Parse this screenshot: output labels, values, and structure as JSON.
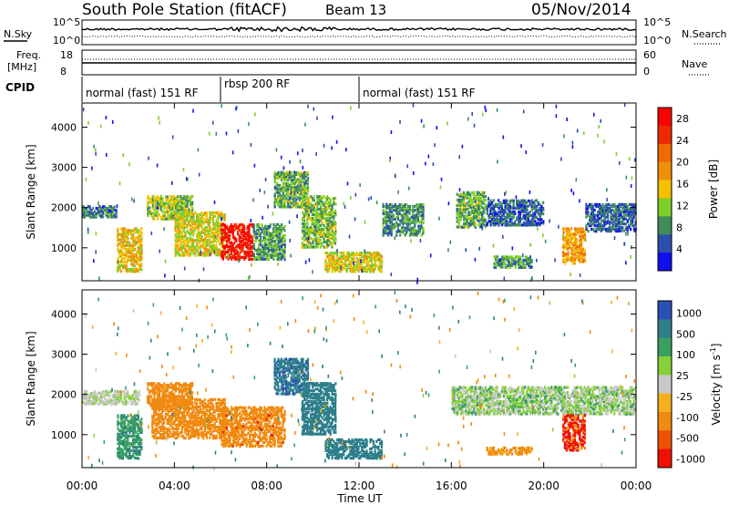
{
  "header": {
    "station": "South Pole Station (fitACF)",
    "beam": "Beam 13",
    "date": "05/Nov/2014"
  },
  "noise_panel": {
    "left_label": "N.Sky",
    "right_label": "N.Search",
    "left_ticks": [
      "10^5",
      "10^0"
    ],
    "right_ticks": [
      "10^5",
      "10^0"
    ]
  },
  "freq_panel": {
    "left_label_line1": "Freq.",
    "left_label_line2": "[MHz]",
    "right_label": "Nave",
    "left_ticks": [
      "18",
      "8"
    ],
    "right_ticks": [
      "60",
      "0"
    ]
  },
  "cpid": {
    "label": "CPID",
    "segments": [
      {
        "text": "normal (fast) 151 RF",
        "start": "00:00",
        "end": "06:00"
      },
      {
        "text": "rbsp 200 RF",
        "start": "06:00",
        "end": "12:00"
      },
      {
        "text": "normal (fast) 151 RF",
        "start": "12:00",
        "end": "24:00"
      }
    ]
  },
  "colors": {
    "power_scale": [
      "#1010ee",
      "#2c4fae",
      "#3f8e5a",
      "#7fcf2a",
      "#f5c000",
      "#f0900a",
      "#f06a00",
      "#ee2800",
      "#ff0000"
    ],
    "velocity_scale": [
      "#2a4fb5",
      "#2d7f8a",
      "#3aa060",
      "#86d03a",
      "#c8c8c8",
      "#f5b020",
      "#f08a10",
      "#ee5000",
      "#f01000"
    ]
  },
  "chart_data": [
    {
      "type": "heatmap",
      "title": "Power",
      "xlabel": "",
      "ylabel": "Slant Range [km]",
      "x_ticks": [
        "00:00",
        "04:00",
        "08:00",
        "12:00",
        "16:00",
        "20:00",
        "00:00"
      ],
      "xlim_hours": [
        0,
        24
      ],
      "y_ticks": [
        1000,
        2000,
        3000,
        4000
      ],
      "ylim": [
        180,
        4600
      ],
      "colorbar": {
        "label": "Power [dB]",
        "ticks": [
          4,
          8,
          12,
          16,
          20,
          24,
          28
        ],
        "range": [
          0,
          30
        ]
      },
      "regions": [
        {
          "t0": 0.0,
          "t1": 1.5,
          "r0": 1750,
          "r1": 2050,
          "value": 7
        },
        {
          "t0": 1.5,
          "t1": 2.6,
          "r0": 400,
          "r1": 1500,
          "value": 16
        },
        {
          "t0": 2.8,
          "t1": 4.8,
          "r0": 1700,
          "r1": 2300,
          "value": 12
        },
        {
          "t0": 4.0,
          "t1": 6.2,
          "r0": 800,
          "r1": 1900,
          "value": 14
        },
        {
          "t0": 6.0,
          "t1": 7.4,
          "r0": 700,
          "r1": 1600,
          "value": 27
        },
        {
          "t0": 7.4,
          "t1": 8.8,
          "r0": 700,
          "r1": 1600,
          "value": 9
        },
        {
          "t0": 8.3,
          "t1": 9.8,
          "r0": 2000,
          "r1": 2900,
          "value": 10
        },
        {
          "t0": 9.5,
          "t1": 11.0,
          "r0": 1000,
          "r1": 2300,
          "value": 11
        },
        {
          "t0": 10.5,
          "t1": 13.0,
          "r0": 400,
          "r1": 900,
          "value": 14
        },
        {
          "t0": 13.0,
          "t1": 14.8,
          "r0": 1300,
          "r1": 2100,
          "value": 8
        },
        {
          "t0": 16.2,
          "t1": 17.5,
          "r0": 1500,
          "r1": 2400,
          "value": 10
        },
        {
          "t0": 17.5,
          "t1": 20.0,
          "r0": 1550,
          "r1": 2200,
          "value": 6
        },
        {
          "t0": 17.8,
          "t1": 19.5,
          "r0": 500,
          "r1": 800,
          "value": 9
        },
        {
          "t0": 20.8,
          "t1": 21.8,
          "r0": 600,
          "r1": 1500,
          "value": 18
        },
        {
          "t0": 21.8,
          "t1": 24.0,
          "r0": 1400,
          "r1": 2100,
          "value": 6
        }
      ]
    },
    {
      "type": "heatmap",
      "title": "Velocity",
      "xlabel": "Time UT",
      "ylabel": "Slant Range [km]",
      "x_ticks": [
        "00:00",
        "04:00",
        "08:00",
        "12:00",
        "16:00",
        "20:00",
        "00:00"
      ],
      "xlim_hours": [
        0,
        24
      ],
      "y_ticks": [
        1000,
        2000,
        3000,
        4000
      ],
      "ylim": [
        180,
        4600
      ],
      "colorbar": {
        "label": "Velocity [m s",
        "label_sup": "-1",
        "label_close": "]",
        "ticks": [
          "1000",
          "500",
          "100",
          "25",
          "-25",
          "-100",
          "-500",
          "-1000"
        ]
      },
      "regions": [
        {
          "t0": 0.0,
          "t1": 2.5,
          "r0": 1750,
          "r1": 2100,
          "value": 0
        },
        {
          "t0": 1.5,
          "t1": 2.6,
          "r0": 400,
          "r1": 1500,
          "value": 80
        },
        {
          "t0": 2.8,
          "t1": 4.8,
          "r0": 1700,
          "r1": 2300,
          "value": -200
        },
        {
          "t0": 3.0,
          "t1": 6.2,
          "r0": 900,
          "r1": 1900,
          "value": -300
        },
        {
          "t0": 6.0,
          "t1": 8.8,
          "r0": 700,
          "r1": 1700,
          "value": -350
        },
        {
          "t0": 8.3,
          "t1": 9.8,
          "r0": 2000,
          "r1": 2900,
          "value": 400
        },
        {
          "t0": 9.5,
          "t1": 11.0,
          "r0": 1000,
          "r1": 2300,
          "value": 250
        },
        {
          "t0": 10.5,
          "t1": 13.0,
          "r0": 400,
          "r1": 900,
          "value": 200
        },
        {
          "t0": 16.0,
          "t1": 24.0,
          "r0": 1500,
          "r1": 2200,
          "value": 10
        },
        {
          "t0": 17.5,
          "t1": 19.5,
          "r0": 500,
          "r1": 700,
          "value": -120
        },
        {
          "t0": 20.8,
          "t1": 21.8,
          "r0": 600,
          "r1": 1500,
          "value": -600
        }
      ]
    }
  ]
}
